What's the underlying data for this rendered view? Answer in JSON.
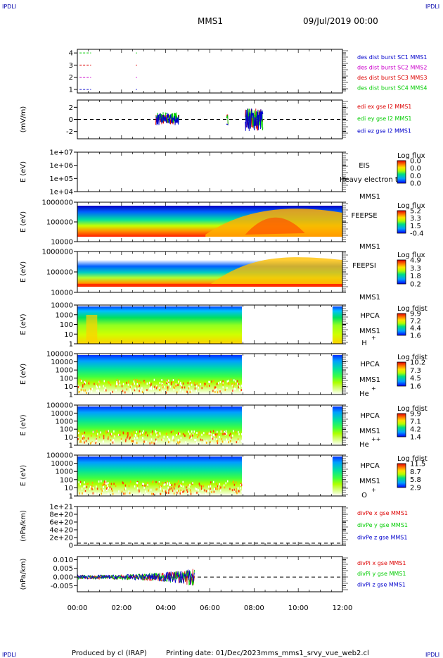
{
  "corner_label": "IPDLI",
  "header": {
    "spacecraft": "MMS1",
    "datetime": "09/Jul/2019 00:00"
  },
  "footer": {
    "producer": "Produced by cl (IRAP)",
    "printing": "Printing date: 01/Dec/2023",
    "filename": "mms_mms1_srvy_vue_web2.cl"
  },
  "x_axis": {
    "ticks": [
      "00:00",
      "02:00",
      "04:00",
      "06:00",
      "08:00",
      "10:00",
      "12:00"
    ],
    "range_hours": [
      0,
      12
    ]
  },
  "colors": {
    "red": "#dd0000",
    "green": "#00cc00",
    "blue": "#0000cc",
    "magenta": "#cc00cc",
    "black": "#000000"
  },
  "chart_data": [
    {
      "type": "line",
      "panel": "burst",
      "yticks": [
        "1",
        "2",
        "3",
        "4"
      ],
      "ylim": [
        0.7,
        4.3
      ],
      "series": [
        {
          "name": "des dist burst SC1 MMS1",
          "color": "#0000cc",
          "level": 1
        },
        {
          "name": "des dist burst SC2 MMS2",
          "color": "#cc00cc",
          "level": 2
        },
        {
          "name": "des dist burst SC3 MMS3",
          "color": "#dd0000",
          "level": 3
        },
        {
          "name": "des dist burst SC4 MMS4",
          "color": "#00cc00",
          "level": 4
        }
      ],
      "segments_hours": [
        [
          0.1,
          0.62
        ],
        [
          2.65,
          2.7
        ]
      ]
    },
    {
      "type": "line",
      "panel": "edi",
      "ylabel": "(mV/m)",
      "yticks": [
        "2",
        "0",
        "-2"
      ],
      "ylim": [
        -3.2,
        3.2
      ],
      "series": [
        {
          "name": "edi ex gse l2 MMS1",
          "color": "#dd0000"
        },
        {
          "name": "edi ey gse l2 MMS1",
          "color": "#00cc00"
        },
        {
          "name": "edi ez gse l2 MMS1",
          "color": "#0000cc"
        }
      ],
      "data_intervals_hours": [
        [
          3.55,
          4.6
        ],
        [
          6.75,
          6.82
        ],
        [
          7.6,
          8.4
        ]
      ]
    },
    {
      "type": "heatmap",
      "panel": "eis",
      "ylabel": "E (eV)",
      "yticks": [
        "1e+07",
        "1e+06",
        "1e+05",
        "1e+04"
      ],
      "labels": [
        "EIS",
        "MMS1"
      ],
      "overlay_text": "Heavy electron to",
      "colorbar": {
        "title": "Log flux",
        "ticks": [
          "0.0",
          "0.0",
          "0.0",
          "0.0"
        ]
      },
      "data_interval_hours": null
    },
    {
      "type": "heatmap",
      "panel": "feeps-e",
      "ylabel": "E (eV)",
      "yticks": [
        "1000000",
        "100000",
        "10000"
      ],
      "labels": [
        "FEEPSE",
        "MMS1"
      ],
      "colorbar": {
        "title": "Log flux",
        "ticks": [
          "5.2",
          "3.3",
          "1.5",
          "-0.4"
        ]
      },
      "data_interval_hours": [
        0,
        12
      ]
    },
    {
      "type": "heatmap",
      "panel": "feeps-i",
      "ylabel": "E (eV)",
      "yticks": [
        "1000000",
        "100000",
        "10000"
      ],
      "labels": [
        "FEEPSI",
        "MMS1"
      ],
      "colorbar": {
        "title": "Log flux",
        "ticks": [
          "4.9",
          "3.3",
          "1.8",
          "0.2"
        ]
      },
      "data_interval_hours": [
        0,
        12
      ]
    },
    {
      "type": "heatmap",
      "panel": "hpca-h",
      "ylabel": "E (eV)",
      "yticks": [
        "10000",
        "1000",
        "100",
        "10",
        "1"
      ],
      "labels": [
        "HPCA",
        "MMS1",
        "H",
        "+"
      ],
      "colorbar": {
        "title": "Log fdist",
        "ticks": [
          "9.9",
          "7.2",
          "4.4",
          "1.6"
        ]
      },
      "data_intervals_hours": [
        [
          0,
          7.45
        ],
        [
          11.55,
          12
        ]
      ]
    },
    {
      "type": "heatmap",
      "panel": "hpca-he",
      "ylabel": "E (eV)",
      "yticks": [
        "100000",
        "10000",
        "1000",
        "100",
        "10",
        "1"
      ],
      "labels": [
        "HPCA",
        "MMS1",
        "He",
        "+"
      ],
      "colorbar": {
        "title": "Log fdist",
        "ticks": [
          "10.2",
          "7.3",
          "4.5",
          "1.6"
        ]
      },
      "data_intervals_hours": [
        [
          0,
          7.45
        ],
        [
          11.55,
          12
        ]
      ]
    },
    {
      "type": "heatmap",
      "panel": "hpca-he2",
      "ylabel": "E (eV)",
      "yticks": [
        "100000",
        "10000",
        "1000",
        "100",
        "10",
        "1"
      ],
      "labels": [
        "HPCA",
        "MMS1",
        "He",
        "++"
      ],
      "colorbar": {
        "title": "Log fdist",
        "ticks": [
          "9.9",
          "7.1",
          "4.2",
          "1.4"
        ]
      },
      "data_intervals_hours": [
        [
          0,
          7.45
        ],
        [
          11.55,
          12
        ]
      ]
    },
    {
      "type": "heatmap",
      "panel": "hpca-o",
      "ylabel": "E (eV)",
      "yticks": [
        "100000",
        "10000",
        "1000",
        "100",
        "10",
        "1"
      ],
      "labels": [
        "HPCA",
        "MMS1",
        "O",
        "+"
      ],
      "colorbar": {
        "title": "Log fdist",
        "ticks": [
          "11.5",
          "8.7",
          "5.8",
          "2.9"
        ]
      },
      "data_intervals_hours": [
        [
          0,
          7.45
        ],
        [
          11.55,
          12
        ]
      ]
    },
    {
      "type": "line",
      "panel": "divpe",
      "ylabel": "(nPa/km)",
      "yticks": [
        "1e+21",
        "8e+20",
        "6e+20",
        "4e+20",
        "2e+20",
        "0"
      ],
      "series": [
        {
          "name": "divPe x gse MMS1",
          "color": "#dd0000"
        },
        {
          "name": "divPe y gse MMS1",
          "color": "#00cc00"
        },
        {
          "name": "divPe z gse MMS1",
          "color": "#0000cc"
        }
      ]
    },
    {
      "type": "line",
      "panel": "divpi",
      "ylabel": "(nPa/km)",
      "yticks": [
        "0.010",
        "0.005",
        "0.000",
        "-0.005"
      ],
      "ylim": [
        -0.0085,
        0.0118
      ],
      "series": [
        {
          "name": "divPi x gse MMS1",
          "color": "#dd0000"
        },
        {
          "name": "divPi y gse MMS1",
          "color": "#00cc00"
        },
        {
          "name": "divPi z gse MMS1",
          "color": "#0000cc"
        }
      ],
      "data_interval_hours": [
        0,
        5.3
      ]
    }
  ]
}
